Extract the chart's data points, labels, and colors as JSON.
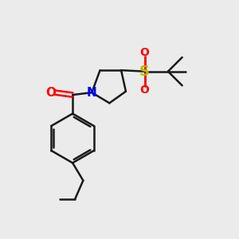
{
  "bg_color": "#ebebeb",
  "bond_color": "#1a1a1a",
  "N_color": "#0000ff",
  "O_color": "#ff0000",
  "S_color": "#b8b800",
  "line_width": 1.8,
  "font_size": 11,
  "figsize": [
    3.0,
    3.0
  ],
  "dpi": 100,
  "xlim": [
    0,
    10
  ],
  "ylim": [
    0,
    10
  ]
}
